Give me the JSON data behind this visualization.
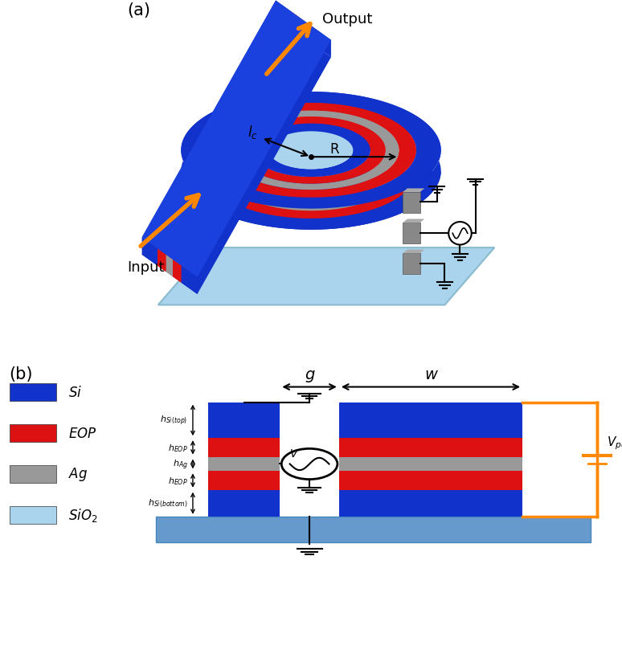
{
  "colors": {
    "Si_blue": "#1133cc",
    "EOP_red": "#dd1111",
    "Ag_gray": "#999999",
    "SiO2_light": "#aad4ee",
    "substrate_blue": "#6699cc",
    "background": "#ffffff",
    "orange": "#ff8800",
    "dark": "#111111",
    "Si_blue_dark": "#0a2299",
    "Ag_gray_dark": "#777777"
  },
  "panel_a_label": "(a)",
  "panel_b_label": "(b)",
  "output_label": "Output",
  "input_label": "Input",
  "legend_labels": [
    "Si",
    "EOP",
    "Ag",
    "SiO$_2$"
  ],
  "dim_labels_top": [
    "$h_{Si(top)}$",
    "$h_{EOP}$",
    "$h_{Ag}$",
    "$h_{EOP}$",
    "$h_{Si(bottom)}$"
  ],
  "g_label": "g",
  "w_label": "w",
  "R_label": "R",
  "lc_label": "$l_c$",
  "V_poling_label": "$V_{poling}$"
}
